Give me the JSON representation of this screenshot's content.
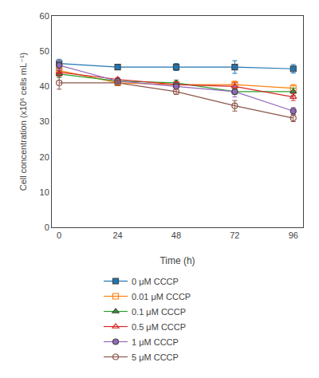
{
  "chart_data": {
    "type": "line",
    "x_label": "Time (h)",
    "y_label": "Cell concentration (x10⁶ cells mL⁻¹)",
    "x": [
      0,
      24,
      48,
      72,
      96
    ],
    "series": [
      {
        "name": "0 μM CCCP",
        "marker": "square",
        "values": [
          46.5,
          45.5,
          45.5,
          45.5,
          45.0
        ],
        "errors": [
          1.2,
          0.5,
          1.0,
          1.8,
          1.2
        ]
      },
      {
        "name": "0.01 μM CCCP",
        "marker": "square-open",
        "values": [
          44.5,
          41.0,
          40.5,
          40.5,
          39.5
        ],
        "errors": [
          1.0,
          0.5,
          0.8,
          1.0,
          1.0
        ]
      },
      {
        "name": "0.1 μM CCCP",
        "marker": "triangle-up",
        "values": [
          43.5,
          41.5,
          41.0,
          38.5,
          38.5
        ],
        "errors": [
          1.0,
          0.5,
          0.8,
          0.8,
          1.0
        ]
      },
      {
        "name": "0.5 μM CCCP",
        "marker": "triangle-up-open",
        "values": [
          44.0,
          42.0,
          40.5,
          40.0,
          37.0
        ],
        "errors": [
          1.0,
          0.5,
          0.8,
          1.0,
          1.0
        ]
      },
      {
        "name": "1 μM CCCP",
        "marker": "circle",
        "values": [
          46.0,
          41.5,
          40.0,
          38.5,
          33.0
        ],
        "errors": [
          1.2,
          0.5,
          0.8,
          1.5,
          1.0
        ]
      },
      {
        "name": "5 μM CCCP",
        "marker": "circle-open",
        "values": [
          41.0,
          41.0,
          38.5,
          34.5,
          31.0
        ],
        "errors": [
          1.8,
          0.5,
          0.8,
          1.5,
          1.0
        ]
      }
    ],
    "xlim": [
      -3,
      100
    ],
    "ylim": [
      0,
      60
    ],
    "xticks": [
      0,
      24,
      48,
      72,
      96
    ],
    "yticks": [
      0,
      10,
      20,
      30,
      40,
      50,
      60
    ],
    "grid": false,
    "legend": "bottom"
  }
}
